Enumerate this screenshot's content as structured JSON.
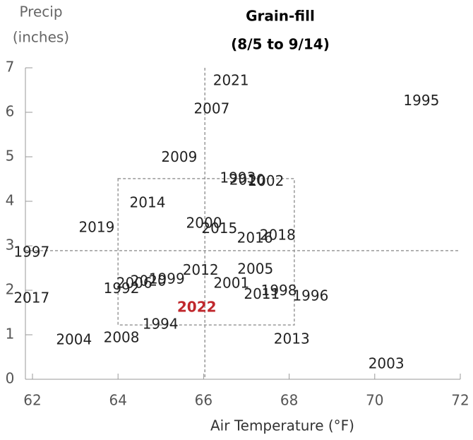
{
  "chart_data": {
    "type": "scatter",
    "title": [
      "Grain-fill",
      "(8/5 to 9/14)"
    ],
    "ylabel": [
      "Precip",
      "(inches)"
    ],
    "xlabel": "Air Temperature (°F)",
    "xlim": [
      62,
      72
    ],
    "xticks": [
      62,
      64,
      66,
      68,
      70,
      72
    ],
    "ylim": [
      0,
      7
    ],
    "yticks": [
      0,
      1,
      2,
      3,
      4,
      5,
      6,
      7
    ],
    "series": [
      {
        "color": "#222222",
        "bold": false,
        "labels": [
          "1995",
          "2021",
          "2007",
          "2009",
          "1993",
          "2010",
          "2002",
          "2014",
          "2019",
          "2000",
          "2015",
          "2016",
          "2018",
          "1997",
          "2012",
          "2005",
          "1992",
          "2006",
          "2020",
          "1999",
          "2001",
          "2011",
          "1998",
          "1996",
          "2017",
          "1994",
          "2008",
          "2004",
          "2013",
          "2003"
        ],
        "x": [
          71.09,
          66.64,
          66.19,
          65.43,
          66.8,
          67.02,
          67.46,
          64.69,
          63.5,
          66.01,
          66.37,
          67.2,
          67.73,
          61.98,
          65.93,
          67.21,
          64.08,
          64.38,
          64.71,
          65.14,
          66.65,
          67.36,
          67.76,
          68.5,
          61.98,
          64.99,
          64.08,
          62.97,
          68.06,
          70.27
        ],
        "values": [
          6.25,
          6.7,
          6.06,
          4.98,
          4.51,
          4.46,
          4.44,
          3.95,
          3.4,
          3.49,
          3.37,
          3.16,
          3.22,
          2.84,
          2.44,
          2.46,
          2.02,
          2.14,
          2.19,
          2.24,
          2.14,
          1.9,
          1.98,
          1.86,
          1.81,
          1.22,
          0.92,
          0.87,
          0.89,
          0.33
        ]
      },
      {
        "color": "#c0282d",
        "bold": true,
        "labels": [
          "2022"
        ],
        "x": [
          65.84
        ],
        "values": [
          1.6
        ]
      }
    ],
    "reference_lines": {
      "x": 66.03,
      "y": 2.89
    },
    "reference_box": {
      "x": [
        64.0,
        68.12
      ],
      "y": [
        1.22,
        4.51
      ]
    }
  }
}
